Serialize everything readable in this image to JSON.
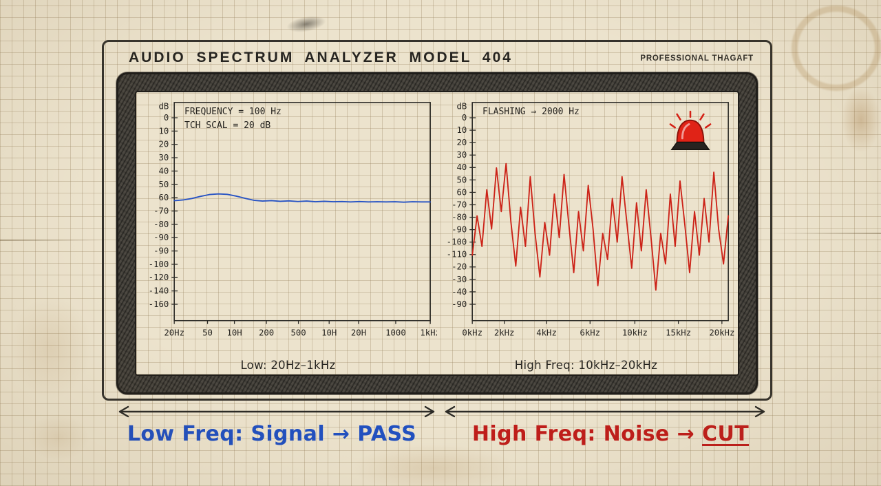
{
  "device": {
    "title": "AUDIO SPECTRUM ANALYZER MODEL 404",
    "badge": "PROFESSIONAL THAGAFT"
  },
  "chart_data": [
    {
      "type": "line",
      "title": "Low: 20Hz–1kHz",
      "annotations": [
        "FREQUENCY = 100 Hz",
        "TCH SCAL = 20 dB"
      ],
      "ylabel": "dB",
      "y_tick_labels": [
        "0",
        "10",
        "20",
        "30",
        "40",
        "50",
        "60",
        "-70",
        "-80",
        "-90",
        "-90",
        "-100",
        "-120",
        "-140",
        "-160"
      ],
      "x_tick_labels": [
        "20Hz",
        "50",
        "10H",
        "200",
        "500",
        "10H",
        "20H",
        "1000",
        "1kHz"
      ],
      "x_tick_pos": [
        0,
        0.13,
        0.235,
        0.36,
        0.485,
        0.605,
        0.72,
        0.865,
        1
      ],
      "y_norm_convention": "0 = plot top, 1 = plot bottom (hand-drawn axis, labels non-monotonic)",
      "series": [
        {
          "name": "low-frequency signal (flat response near 60 dB line)",
          "color": "#2753c4",
          "y_norm": [
            0.45,
            0.447,
            0.44,
            0.43,
            0.422,
            0.419,
            0.421,
            0.429,
            0.439,
            0.448,
            0.452,
            0.45,
            0.453,
            0.451,
            0.454,
            0.452,
            0.455,
            0.453,
            0.455,
            0.454,
            0.456,
            0.454,
            0.456,
            0.455,
            0.456,
            0.455,
            0.457,
            0.455,
            0.456,
            0.456
          ]
        }
      ]
    },
    {
      "type": "line",
      "title": "High Freq: 10kHz–20kHz",
      "annotations": [
        "FLASHING ⇒ 2000 Hz"
      ],
      "ylabel": "dB",
      "y_tick_labels": [
        "0",
        "10",
        "20",
        "30",
        "40",
        "50",
        "60",
        "-70",
        "-80",
        "-90",
        "-100",
        "-110",
        "-20",
        "-30",
        "-40",
        "-90"
      ],
      "x_tick_labels": [
        "0kHz",
        "2kHz",
        "4kHz",
        "6kHz",
        "10kHz",
        "15kHz",
        "20kHz"
      ],
      "x_tick_pos": [
        0,
        0.125,
        0.29,
        0.46,
        0.635,
        0.805,
        0.975
      ],
      "y_norm_convention": "0 = plot top, 1 = plot bottom (hand-drawn axis, labels non-monotonic)",
      "series": [
        {
          "name": "high-frequency noise (jagged trace)",
          "color": "#cc2318",
          "y_norm": [
            0.7,
            0.52,
            0.66,
            0.4,
            0.58,
            0.3,
            0.5,
            0.28,
            0.55,
            0.75,
            0.48,
            0.66,
            0.34,
            0.6,
            0.8,
            0.55,
            0.7,
            0.42,
            0.62,
            0.33,
            0.56,
            0.78,
            0.5,
            0.68,
            0.38,
            0.58,
            0.84,
            0.6,
            0.72,
            0.44,
            0.64,
            0.34,
            0.55,
            0.76,
            0.46,
            0.68,
            0.4,
            0.62,
            0.86,
            0.6,
            0.74,
            0.42,
            0.66,
            0.36,
            0.56,
            0.78,
            0.5,
            0.7,
            0.44,
            0.64,
            0.32,
            0.58,
            0.74,
            0.52
          ]
        }
      ]
    }
  ],
  "footer": {
    "left_label": "Low Freq: Signal → PASS",
    "right_prefix": "High Freq: Noise → ",
    "right_emph": "CUT"
  },
  "colors": {
    "signal_blue": "#2753c4",
    "noise_red": "#cc2318",
    "pass_label_blue": "#2150c0",
    "cut_label_red": "#bf1d1a",
    "ink": "#2b2a26",
    "paper": "#ece3cd"
  },
  "icons": {
    "siren": "siren-icon — red alarm beacon with radiating flash rays"
  }
}
